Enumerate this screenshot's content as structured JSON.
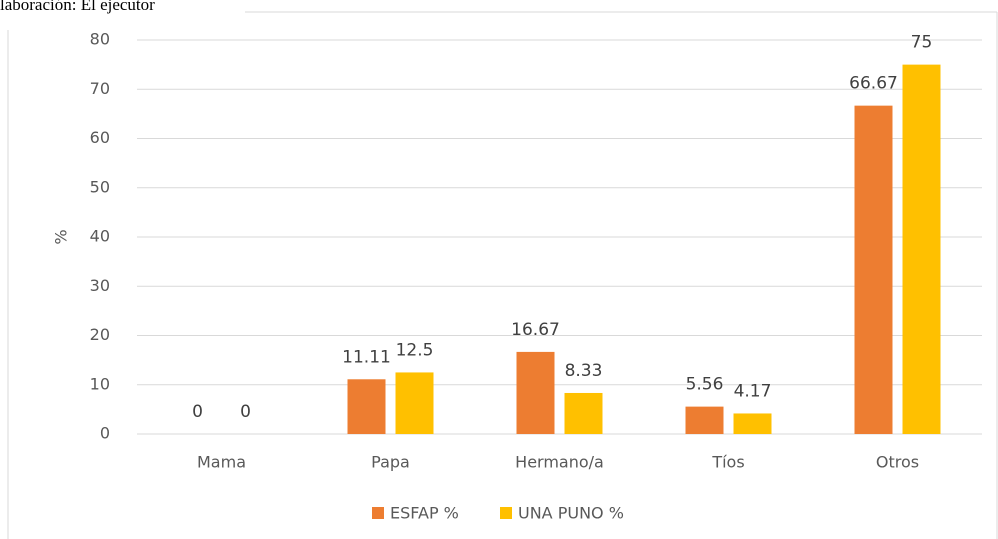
{
  "source_note": "laboración: El ejecutor",
  "chart_data": {
    "type": "bar",
    "categories": [
      "Mama",
      "Papa",
      "Hermano/a",
      "Tíos",
      "Otros"
    ],
    "series": [
      {
        "name": "ESFAP %",
        "color": "#ed7d31",
        "values": [
          0,
          11.11,
          16.67,
          5.56,
          66.67
        ]
      },
      {
        "name": "UNA PUNO %",
        "color": "#ffc000",
        "values": [
          0,
          12.5,
          8.33,
          4.17,
          75
        ]
      }
    ],
    "y_label": "%",
    "ylim": [
      0,
      80
    ],
    "yticks": [
      0,
      10,
      20,
      30,
      40,
      50,
      60,
      70,
      80
    ],
    "grid": true,
    "legend": "bottom"
  }
}
